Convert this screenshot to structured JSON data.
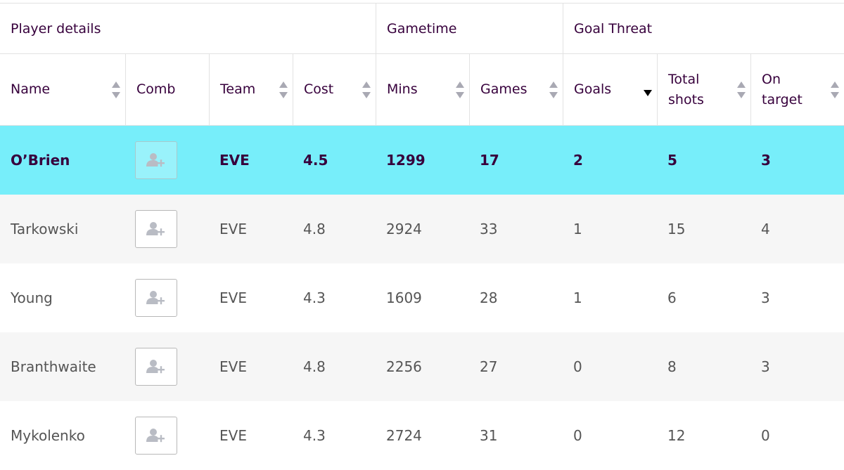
{
  "groups": [
    {
      "label": "Player details"
    },
    {
      "label": "Gametime"
    },
    {
      "label": "Goal Threat"
    }
  ],
  "columns": [
    {
      "label": "Name",
      "sortable": true
    },
    {
      "label": "Comb",
      "sortable": false
    },
    {
      "label": "Team",
      "sortable": true
    },
    {
      "label": "Cost",
      "sortable": true
    },
    {
      "label": "Mins",
      "sortable": true
    },
    {
      "label": "Games",
      "sortable": true
    },
    {
      "label": "Goals",
      "sortable": true,
      "active_sort": "descending"
    },
    {
      "label": "Total\nshots",
      "sortable": true
    },
    {
      "label": "On\ntarget",
      "sortable": true
    }
  ],
  "rows": [
    {
      "name": "O’Brien",
      "team": "EVE",
      "cost": "4.5",
      "mins": "1299",
      "games": "17",
      "goals": "2",
      "total_shots": "5",
      "on_target": "3",
      "selected": true
    },
    {
      "name": "Tarkowski",
      "team": "EVE",
      "cost": "4.8",
      "mins": "2924",
      "games": "33",
      "goals": "1",
      "total_shots": "15",
      "on_target": "4"
    },
    {
      "name": "Young",
      "team": "EVE",
      "cost": "4.3",
      "mins": "1609",
      "games": "28",
      "goals": "1",
      "total_shots": "6",
      "on_target": "3"
    },
    {
      "name": "Branthwaite",
      "team": "EVE",
      "cost": "4.8",
      "mins": "2256",
      "games": "27",
      "goals": "0",
      "total_shots": "8",
      "on_target": "3"
    },
    {
      "name": "Mykolenko",
      "team": "EVE",
      "cost": "4.3",
      "mins": "2724",
      "games": "31",
      "goals": "0",
      "total_shots": "12",
      "on_target": "0"
    }
  ],
  "icons": {
    "comb": "add-user-icon"
  },
  "colors": {
    "selected_row": "#77eefa",
    "alt_row": "#f6f6f6",
    "text_primary": "#37003c"
  }
}
